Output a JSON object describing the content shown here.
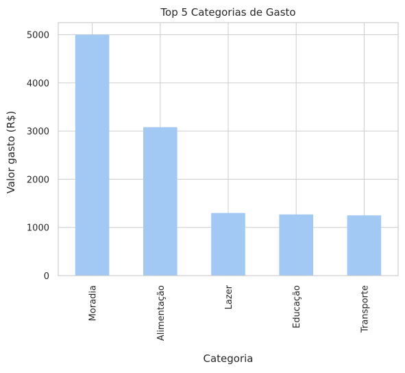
{
  "chart_data": {
    "type": "bar",
    "title": "Top 5 Categorias de Gasto",
    "xlabel": "Categoria",
    "ylabel": "Valor gasto (R$)",
    "categories": [
      "Moradia",
      "Alimentação",
      "Lazer",
      "Educação",
      "Transporte"
    ],
    "values": [
      5000,
      3080,
      1300,
      1270,
      1250
    ],
    "ylim": [
      0,
      5250
    ],
    "yticks": [
      0,
      1000,
      2000,
      3000,
      4000,
      5000
    ],
    "grid": true,
    "bar_color": "#a1c9f4",
    "grid_color": "#cccccc",
    "spine_color": "#cccccc"
  }
}
